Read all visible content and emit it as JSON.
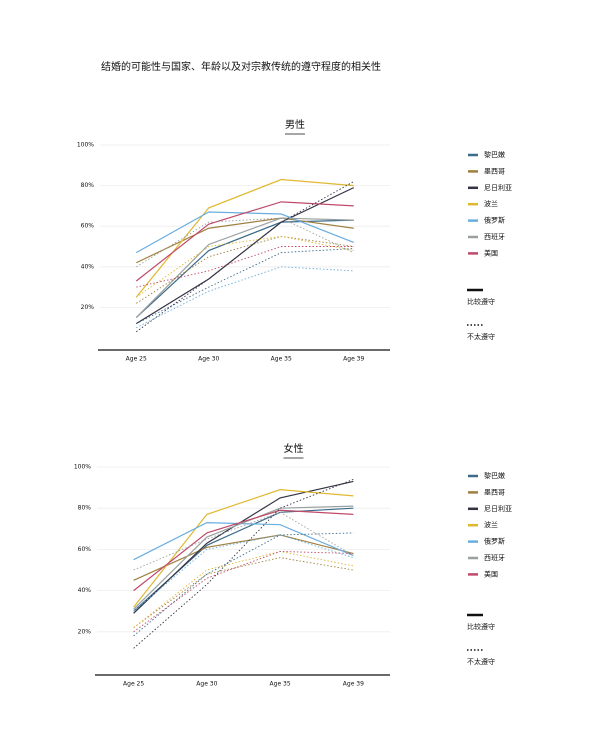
{
  "title": "结婚的可能性与国家、年龄以及对宗教传统的遵守程度的相关性",
  "chart_data": [
    {
      "type": "line",
      "title": "男性",
      "categories": [
        "Age 25",
        "Age 30",
        "Age 35",
        "Age 39"
      ],
      "ylim": [
        0,
        100
      ],
      "yticks": [
        {
          "value": 20,
          "label": "20%"
        },
        {
          "value": 40,
          "label": "40%"
        },
        {
          "value": 60,
          "label": "60%"
        },
        {
          "value": 80,
          "label": "80%"
        },
        {
          "value": 100,
          "label": "100%"
        }
      ],
      "grid": true,
      "line_styles": [
        {
          "name": "比较遵守",
          "dash": "none"
        },
        {
          "name": "不太遵守",
          "dash": "1.5 2"
        }
      ],
      "series": [
        {
          "name": "黎巴嫩",
          "color": "#3d6b8a",
          "values": [
            15,
            48,
            62,
            63
          ],
          "values_dotted": [
            12,
            30,
            47,
            49
          ]
        },
        {
          "name": "墨西哥",
          "color": "#a08040",
          "values": [
            42,
            59,
            64,
            59
          ],
          "values_dotted": [
            22,
            45,
            55,
            50
          ]
        },
        {
          "name": "尼日利亚",
          "color": "#333344",
          "values": [
            12,
            34,
            62,
            79
          ],
          "values_dotted": [
            8,
            34,
            62,
            82
          ]
        },
        {
          "name": "波兰",
          "color": "#e0b830",
          "values": [
            25,
            69,
            83,
            80
          ],
          "values_dotted": [
            25,
            50,
            55,
            48
          ]
        },
        {
          "name": "俄罗斯",
          "color": "#6aaee0",
          "values": [
            47,
            67,
            66,
            52
          ],
          "values_dotted": [
            10,
            28,
            40,
            38
          ]
        },
        {
          "name": "西班牙",
          "color": "#9aa0a0",
          "values": [
            15,
            51,
            64,
            63
          ],
          "values_dotted": [
            40,
            62,
            64,
            47
          ]
        },
        {
          "name": "美国",
          "color": "#c04a6a",
          "values": [
            33,
            61,
            72,
            70
          ],
          "values_dotted": [
            30,
            38,
            50,
            50
          ]
        }
      ]
    },
    {
      "type": "line",
      "title": "女性",
      "categories": [
        "Age 25",
        "Age 30",
        "Age 35",
        "Age 39"
      ],
      "ylim": [
        0,
        100
      ],
      "yticks": [
        {
          "value": 20,
          "label": "20%"
        },
        {
          "value": 40,
          "label": "40%"
        },
        {
          "value": 60,
          "label": "60%"
        },
        {
          "value": 80,
          "label": "80%"
        },
        {
          "value": 100,
          "label": "100%"
        }
      ],
      "grid": true,
      "line_styles": [
        {
          "name": "比较遵守",
          "dash": "none"
        },
        {
          "name": "不太遵守",
          "dash": "1.5 2"
        }
      ],
      "series": [
        {
          "name": "黎巴嫩",
          "color": "#3d6b8a",
          "values": [
            30,
            62,
            78,
            80
          ],
          "values_dotted": [
            18,
            48,
            67,
            68
          ]
        },
        {
          "name": "墨西哥",
          "color": "#a08040",
          "values": [
            45,
            61,
            67,
            58
          ],
          "values_dotted": [
            22,
            48,
            56,
            50
          ]
        },
        {
          "name": "尼日利亚",
          "color": "#333344",
          "values": [
            29,
            63,
            85,
            93
          ],
          "values_dotted": [
            12,
            43,
            80,
            94
          ]
        },
        {
          "name": "波兰",
          "color": "#e0b830",
          "values": [
            32,
            77,
            89,
            86
          ],
          "values_dotted": [
            22,
            50,
            59,
            52
          ]
        },
        {
          "name": "俄罗斯",
          "color": "#6aaee0",
          "values": [
            55,
            73,
            72,
            57
          ],
          "values_dotted": [
            30,
            60,
            67,
            56
          ]
        },
        {
          "name": "西班牙",
          "color": "#9aa0a0",
          "values": [
            31,
            66,
            80,
            81
          ],
          "values_dotted": [
            50,
            65,
            78,
            57
          ]
        },
        {
          "name": "美国",
          "color": "#c04a6a",
          "values": [
            40,
            68,
            79,
            77
          ],
          "values_dotted": [
            20,
            46,
            59,
            58
          ]
        }
      ]
    }
  ]
}
